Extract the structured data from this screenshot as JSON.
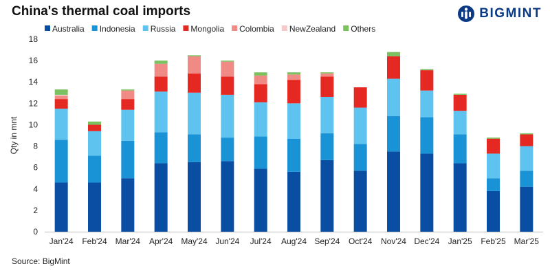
{
  "header": {
    "title": "China's thermal coal imports",
    "brand": "BIGMINT"
  },
  "footer": {
    "source": "Source: BigMint"
  },
  "chart_data": {
    "type": "bar",
    "stacked": true,
    "title": "China's thermal coal imports",
    "xlabel": "",
    "ylabel": "Qty in mnt",
    "ylim": [
      0,
      18
    ],
    "yticks": [
      0,
      2,
      4,
      6,
      8,
      10,
      12,
      14,
      16,
      18
    ],
    "grid": false,
    "legend_position": "top-left",
    "categories": [
      "Jan'24",
      "Feb'24",
      "Mar'24",
      "Apr'24",
      "May'24",
      "Jun'24",
      "Jul'24",
      "Aug'24",
      "Sep'24",
      "Oct'24",
      "Nov'24",
      "Dec'24",
      "Jan'25",
      "Feb'25",
      "Mar'25"
    ],
    "series": [
      {
        "name": "Australia",
        "color": "#0a4ea3",
        "values": [
          4.6,
          4.6,
          5.0,
          6.4,
          6.5,
          6.6,
          5.9,
          5.6,
          6.7,
          5.7,
          7.5,
          7.3,
          6.4,
          3.8,
          4.2
        ]
      },
      {
        "name": "Indonesia",
        "color": "#1a93d6",
        "values": [
          4.0,
          2.5,
          3.5,
          2.9,
          2.6,
          2.2,
          3.0,
          3.1,
          2.5,
          2.5,
          3.3,
          3.4,
          2.7,
          1.2,
          1.5
        ]
      },
      {
        "name": "Russia",
        "color": "#5ec3ee",
        "values": [
          2.9,
          2.3,
          2.9,
          3.8,
          3.9,
          4.0,
          3.2,
          3.3,
          3.4,
          3.4,
          3.5,
          2.5,
          2.2,
          2.3,
          2.3
        ]
      },
      {
        "name": "Mongolia",
        "color": "#e52822",
        "values": [
          0.9,
          0.6,
          1.0,
          1.4,
          1.8,
          1.7,
          1.7,
          2.2,
          1.9,
          1.9,
          2.1,
          1.9,
          1.5,
          1.4,
          1.1
        ]
      },
      {
        "name": "Colombia",
        "color": "#f08a84",
        "values": [
          0.3,
          0.0,
          0.8,
          1.2,
          1.6,
          1.4,
          0.8,
          0.5,
          0.3,
          0.0,
          0.0,
          0.0,
          0.0,
          0.0,
          0.0
        ]
      },
      {
        "name": "NewZealand",
        "color": "#f7c9c6",
        "values": [
          0.1,
          0.0,
          0.0,
          0.0,
          0.0,
          0.0,
          0.0,
          0.0,
          0.0,
          0.0,
          0.0,
          0.0,
          0.0,
          0.0,
          0.0
        ]
      },
      {
        "name": "Others",
        "color": "#7cc160",
        "values": [
          0.5,
          0.3,
          0.1,
          0.3,
          0.1,
          0.1,
          0.3,
          0.2,
          0.1,
          0.0,
          0.4,
          0.1,
          0.1,
          0.1,
          0.1
        ]
      }
    ]
  }
}
